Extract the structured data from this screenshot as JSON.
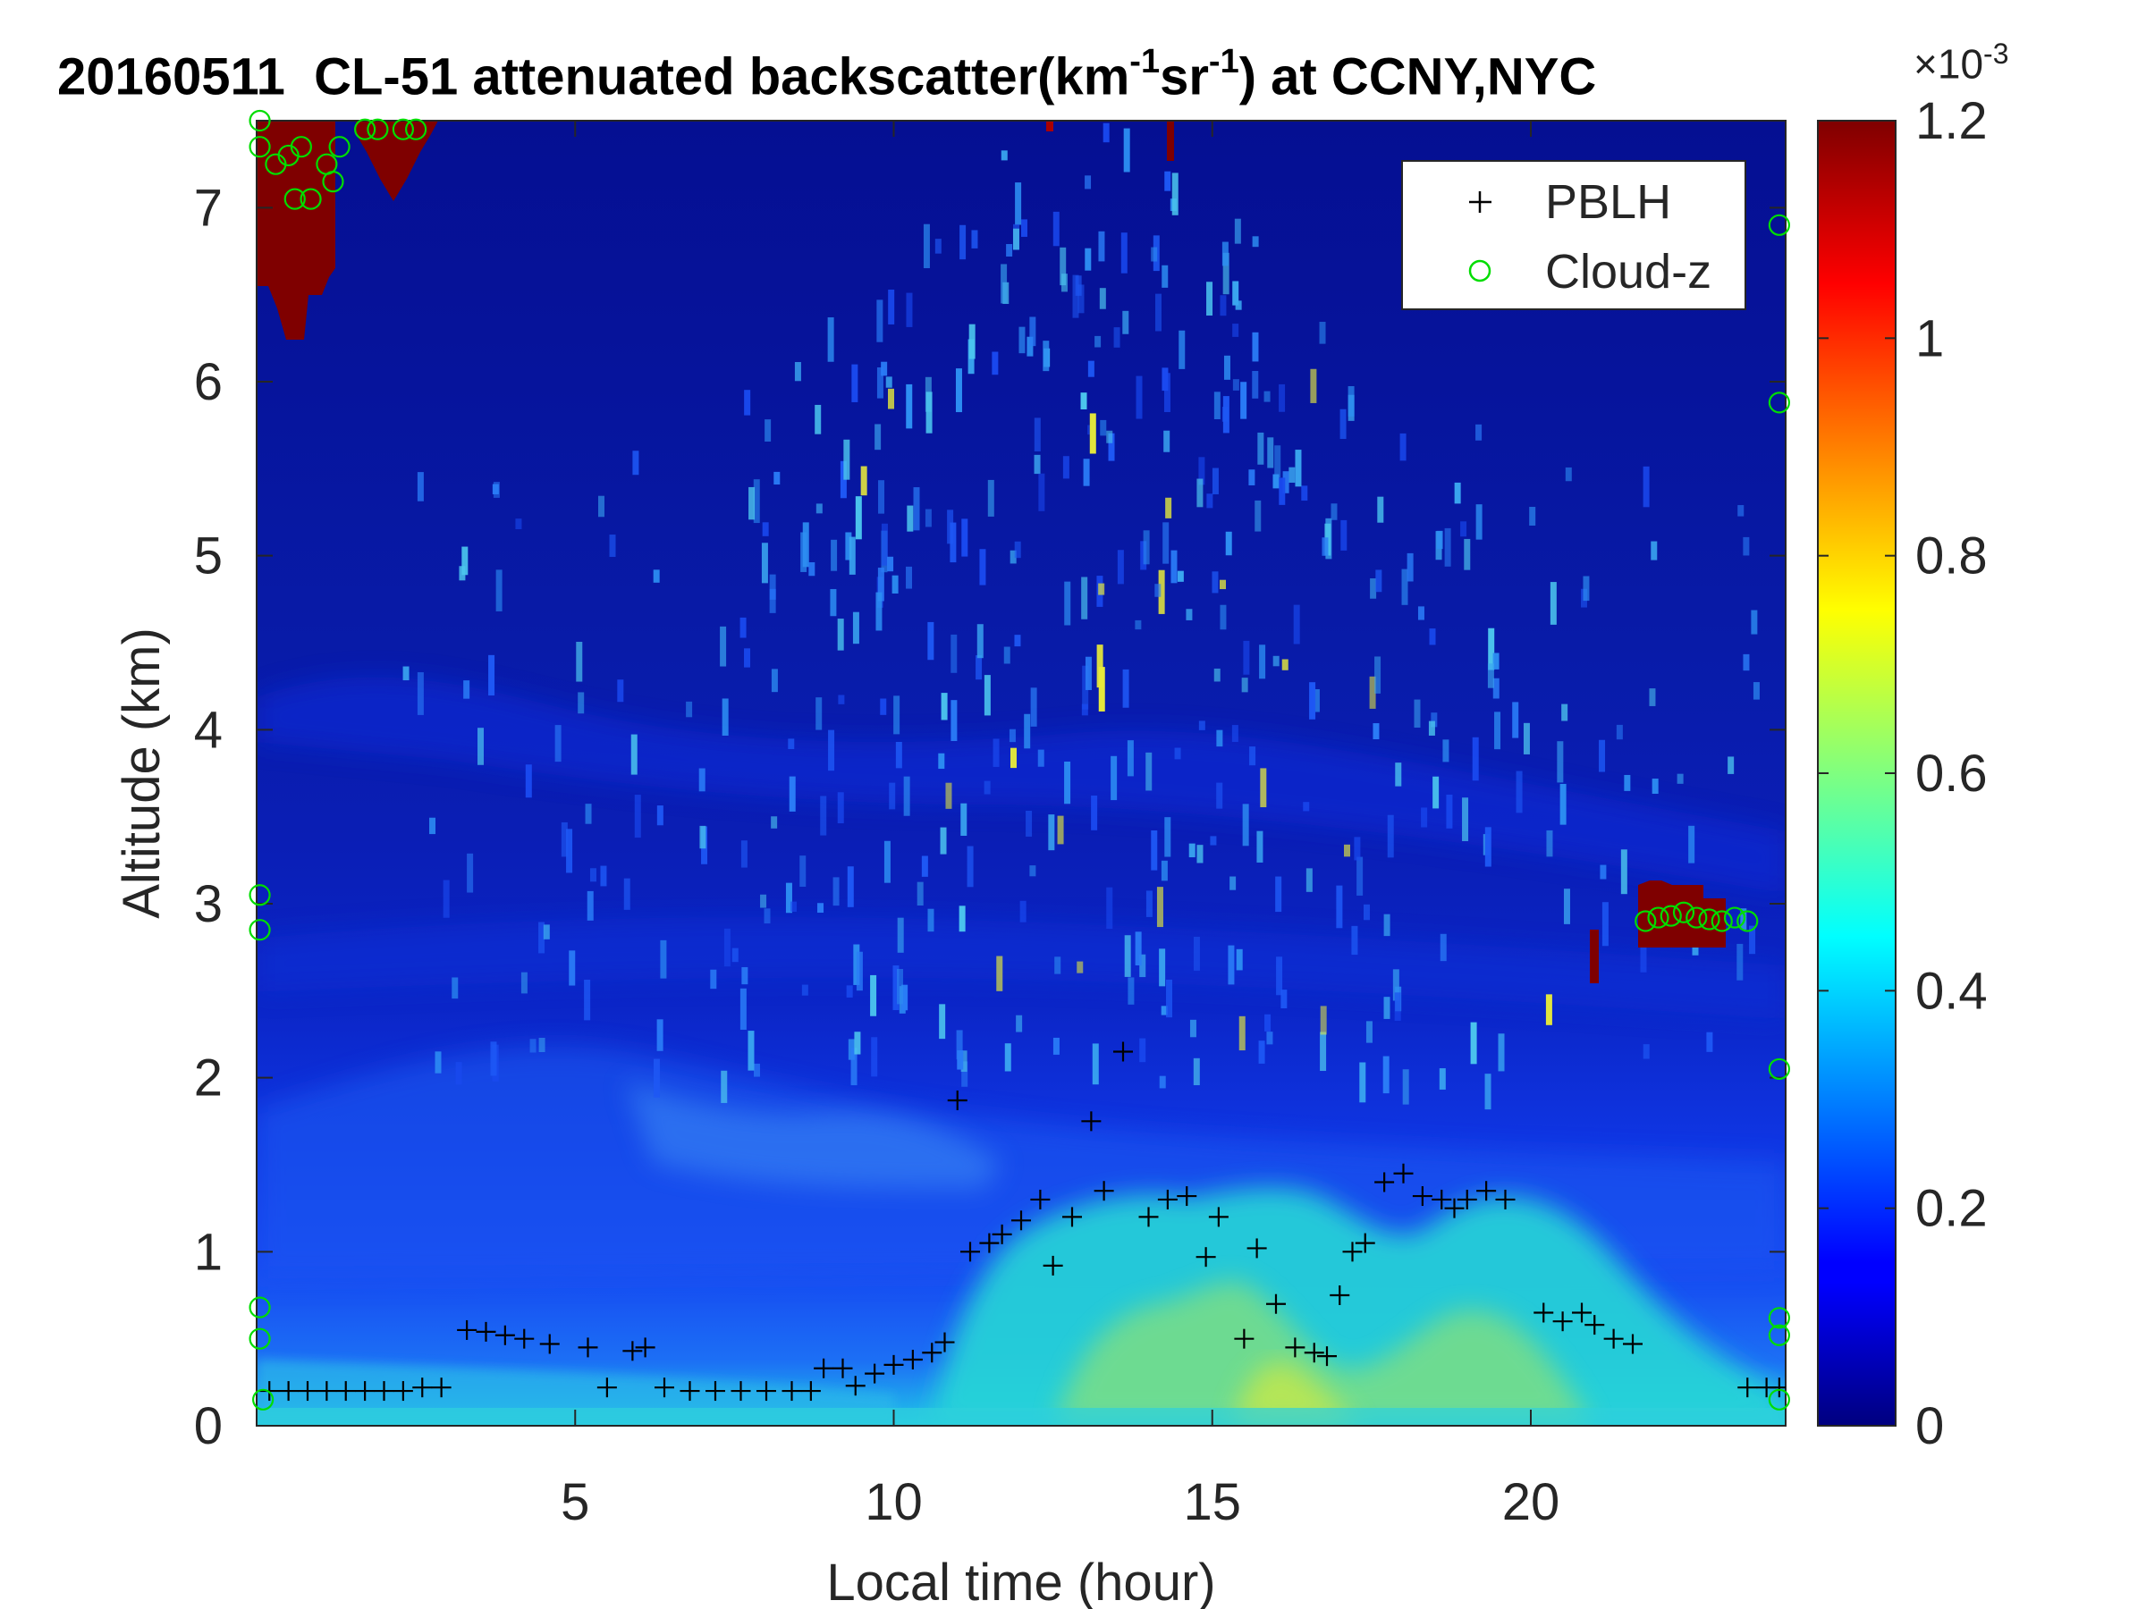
{
  "chart_data": {
    "type": "heatmap",
    "title_parts": {
      "date": "20160511",
      "instrument": "CL-51 attenuated backscatter(km",
      "exp1": "-1",
      "sr": "sr",
      "exp2": "-1",
      "location": ") at CCNY,NYC"
    },
    "xlabel": "Local time (hour)",
    "ylabel": "Altitude (km)",
    "xlim": [
      0,
      24
    ],
    "ylim": [
      0,
      7.5
    ],
    "xticks": [
      5,
      10,
      15,
      20
    ],
    "yticks": [
      0,
      1,
      2,
      3,
      4,
      5,
      6,
      7
    ],
    "colorbar": {
      "colormap": "jet",
      "clim": [
        0,
        0.0012
      ],
      "scale_base": "×10",
      "scale_exp": "-3",
      "tick_values": [
        0,
        0.2,
        0.4,
        0.6,
        0.8,
        1,
        1.2
      ],
      "tick_labels": [
        "0",
        "0.2",
        "0.4",
        "0.6",
        "0.8",
        "1",
        "1.2"
      ]
    },
    "legend": {
      "placement": "top-right",
      "entries": [
        {
          "label": "PBLH",
          "marker": "+",
          "color": "#000000"
        },
        {
          "label": "Cloud-z",
          "marker": "o",
          "color": "#00dd00"
        }
      ]
    },
    "series": [
      {
        "name": "PBLH",
        "x": [
          0.2,
          0.5,
          0.8,
          1.1,
          1.4,
          1.7,
          2.0,
          2.3,
          2.6,
          2.9,
          3.3,
          3.6,
          3.9,
          4.2,
          4.6,
          5.2,
          5.5,
          5.9,
          6.1,
          6.4,
          6.8,
          7.2,
          7.6,
          8.0,
          8.4,
          8.7,
          8.9,
          9.2,
          9.4,
          9.7,
          10.0,
          10.3,
          10.6,
          10.8,
          11.0,
          11.2,
          11.5,
          11.7,
          12.0,
          12.3,
          12.5,
          12.8,
          13.1,
          13.3,
          13.6,
          14.0,
          14.3,
          14.6,
          14.9,
          15.1,
          15.5,
          15.7,
          16.0,
          16.3,
          16.6,
          16.8,
          17.0,
          17.2,
          17.4,
          17.7,
          18.0,
          18.3,
          18.6,
          18.8,
          19.0,
          19.3,
          19.6,
          20.2,
          20.5,
          20.8,
          21.0,
          21.3,
          21.6,
          23.4,
          23.7,
          23.9
        ],
        "y": [
          0.2,
          0.2,
          0.2,
          0.2,
          0.2,
          0.2,
          0.2,
          0.2,
          0.22,
          0.22,
          0.55,
          0.54,
          0.52,
          0.5,
          0.47,
          0.45,
          0.22,
          0.43,
          0.45,
          0.22,
          0.2,
          0.2,
          0.2,
          0.2,
          0.2,
          0.2,
          0.33,
          0.33,
          0.23,
          0.3,
          0.35,
          0.38,
          0.42,
          0.48,
          1.87,
          1.0,
          1.05,
          1.1,
          1.18,
          1.3,
          0.92,
          1.2,
          1.75,
          1.35,
          2.15,
          1.2,
          1.3,
          1.32,
          0.97,
          1.2,
          0.5,
          1.02,
          0.7,
          0.45,
          0.42,
          0.4,
          0.75,
          1.0,
          1.05,
          1.4,
          1.45,
          1.32,
          1.3,
          1.25,
          1.3,
          1.35,
          1.3,
          0.65,
          0.6,
          0.65,
          0.58,
          0.5,
          0.47,
          0.22,
          0.22,
          0.22
        ]
      },
      {
        "name": "Cloud-z",
        "x": [
          0.05,
          0.05,
          0.3,
          0.5,
          0.6,
          0.7,
          0.85,
          1.1,
          1.2,
          1.3,
          1.7,
          1.9,
          2.3,
          2.5,
          0.05,
          0.05,
          0.05,
          0.05,
          0.1,
          21.8,
          22.0,
          22.2,
          22.4,
          22.6,
          22.8,
          23.0,
          23.2,
          23.4,
          23.9,
          23.9,
          23.9,
          23.9,
          23.9,
          23.9
        ],
        "y": [
          7.5,
          7.35,
          7.25,
          7.3,
          7.05,
          7.35,
          7.05,
          7.25,
          7.15,
          7.35,
          7.45,
          7.45,
          7.45,
          7.45,
          3.05,
          2.85,
          0.68,
          0.5,
          0.15,
          2.9,
          2.92,
          2.93,
          2.95,
          2.92,
          2.91,
          2.9,
          2.92,
          2.9,
          6.9,
          5.88,
          2.05,
          0.62,
          0.52,
          0.15
        ]
      }
    ]
  }
}
